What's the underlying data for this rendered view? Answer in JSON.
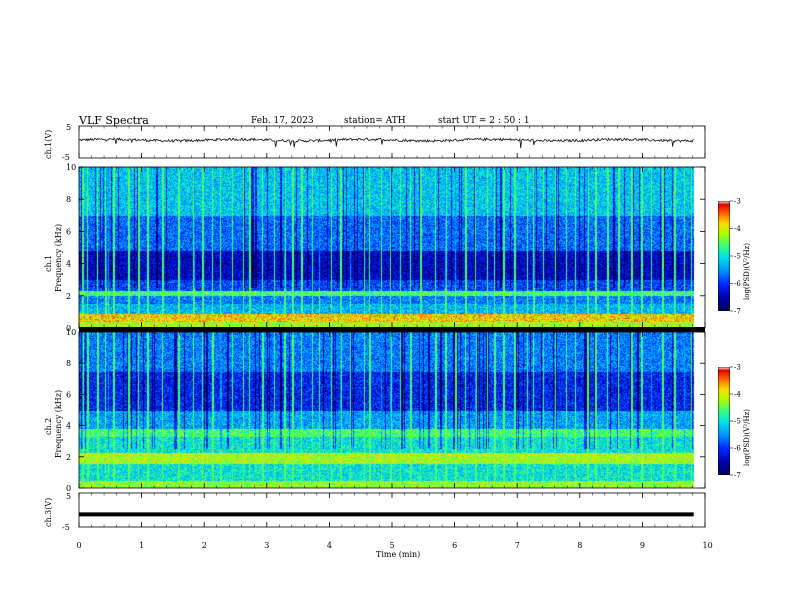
{
  "header": {
    "title": "VLF  Spectra",
    "date": "Feb. 17, 2023",
    "station": "station= ATH",
    "start_ut": "start  UT  =   2  : 50 : 1"
  },
  "chart_data": [
    {
      "id": "ch1-waveform",
      "type": "line",
      "ylabel": "ch.1(V)",
      "yticks": [
        "5",
        "-5"
      ],
      "ylim": [
        -5,
        5
      ],
      "xlim": [
        0,
        10
      ],
      "description_values": {
        "baseline_V": 0.6,
        "noise_amplitude_V": 0.8,
        "data_end_min": 9.82
      },
      "line_color": "#000000"
    },
    {
      "id": "ch1-spectrogram",
      "type": "heatmap",
      "ylabel": "ch.1\nFrequency  (kHz)",
      "ylabel_line1": "ch.1",
      "ylabel_line2": "Frequency  (kHz)",
      "yticks": [
        "0",
        "2",
        "4",
        "6",
        "8",
        "10"
      ],
      "ylim": [
        0,
        10
      ],
      "xlim": [
        0,
        10
      ],
      "colorbar": {
        "label": "log(PSD)(V²/Hz)",
        "ticks": [
          "-3",
          "-4",
          "-5",
          "-6",
          "-7"
        ],
        "range": [
          -7,
          -3
        ],
        "colors": [
          "#000080",
          "#0000ff",
          "#00a0ff",
          "#00ffff",
          "#00ff80",
          "#80ff00",
          "#ffff00",
          "#ff8000",
          "#ff0000",
          "#ffffff"
        ]
      },
      "bands_kHz_logpsd": [
        {
          "f": [
            0,
            0.4
          ],
          "level": -4.2
        },
        {
          "f": [
            0.4,
            0.9
          ],
          "level": -3.8
        },
        {
          "f": [
            0.9,
            1.5
          ],
          "level": -5.3
        },
        {
          "f": [
            1.5,
            2.0
          ],
          "level": -5.6
        },
        {
          "f": [
            2.0,
            2.3
          ],
          "level": -4.6
        },
        {
          "f": [
            2.3,
            3.0
          ],
          "level": -5.9
        },
        {
          "f": [
            3.0,
            4.8
          ],
          "level": -6.4
        },
        {
          "f": [
            4.8,
            7.0
          ],
          "level": -5.7
        },
        {
          "f": [
            7.0,
            10.0
          ],
          "level": -5.2
        }
      ]
    },
    {
      "id": "ch2-spectrogram",
      "type": "heatmap",
      "ylabel_line1": "ch.2",
      "ylabel_line2": "Frequency  (kHz)",
      "yticks": [
        "0",
        "2",
        "4",
        "6",
        "8",
        "10"
      ],
      "ylim": [
        0,
        10
      ],
      "xlim": [
        0,
        10
      ],
      "colorbar": {
        "label": "log(PSD)(V²/Hz)",
        "ticks": [
          "-3",
          "-4",
          "-5",
          "-6",
          "-7"
        ],
        "range": [
          -7,
          -3
        ]
      },
      "bands_kHz_logpsd": [
        {
          "f": [
            0,
            0.5
          ],
          "level": -4.3
        },
        {
          "f": [
            0.5,
            1.6
          ],
          "level": -5.0
        },
        {
          "f": [
            1.6,
            2.3
          ],
          "level": -4.2
        },
        {
          "f": [
            2.3,
            3.3
          ],
          "level": -5.0
        },
        {
          "f": [
            3.3,
            3.8
          ],
          "level": -4.6
        },
        {
          "f": [
            3.8,
            5.0
          ],
          "level": -5.4
        },
        {
          "f": [
            5.0,
            7.5
          ],
          "level": -6.1
        },
        {
          "f": [
            7.5,
            10.0
          ],
          "level": -5.6
        }
      ]
    },
    {
      "id": "ch3-waveform",
      "type": "line",
      "ylabel": "ch.3(V)",
      "yticks": [
        "5",
        "-5"
      ],
      "ylim": [
        -5,
        5
      ],
      "xlim": [
        0,
        10
      ],
      "description_values": {
        "baseline_V": -1.3,
        "data_end_min": 9.82
      },
      "line_color": "#000000"
    }
  ],
  "xaxis": {
    "label": "Time  (min)",
    "ticks": [
      "0",
      "1",
      "2",
      "3",
      "4",
      "5",
      "6",
      "7",
      "8",
      "9",
      "10"
    ],
    "range": [
      0,
      10
    ]
  },
  "spike_times_min": [
    0.05,
    0.12,
    0.28,
    0.42,
    0.47,
    0.55,
    0.78,
    0.95,
    1.08,
    1.32,
    1.58,
    1.82,
    1.97,
    2.13,
    2.26,
    2.45,
    2.62,
    2.71,
    2.93,
    3.12,
    3.28,
    3.41,
    3.55,
    3.72,
    3.84,
    4.02,
    4.17,
    4.33,
    4.55,
    4.63,
    4.82,
    4.97,
    5.12,
    5.28,
    5.45,
    5.68,
    5.84,
    6.01,
    6.17,
    6.33,
    6.52,
    6.63,
    6.78,
    6.95,
    7.15,
    7.25,
    7.42,
    7.61,
    7.78,
    7.93,
    8.12,
    8.25,
    8.44,
    8.61,
    8.82,
    8.97,
    9.14,
    9.31,
    9.5,
    9.66,
    9.78
  ]
}
